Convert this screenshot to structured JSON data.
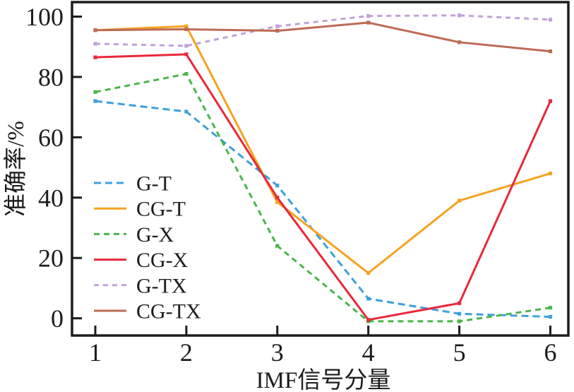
{
  "figure": {
    "background": "#ffffff",
    "axis_color": "#1c1c1c"
  },
  "chart_data": {
    "type": "line",
    "title": "",
    "xlabel": "IMF信号分量",
    "ylabel": "准确率/%",
    "x": [
      1,
      2,
      3,
      4,
      5,
      6
    ],
    "xticks": [
      "1",
      "2",
      "3",
      "4",
      "5",
      "6"
    ],
    "yticks": [
      "0",
      "20",
      "40",
      "60",
      "80",
      "100"
    ],
    "ytick_values": [
      0,
      20,
      40,
      60,
      80,
      100
    ],
    "xtick_values": [
      1,
      2,
      3,
      4,
      5,
      6
    ],
    "xlim": [
      0.744,
      6.198
    ],
    "ylim": [
      -5.7,
      104.8
    ],
    "grid": false,
    "legend_position": "inside-lower-left",
    "series": [
      {
        "name": "G-T",
        "color": "#3da0dc",
        "style": "dashed",
        "dash": "10 6",
        "values": [
          72,
          68.5,
          44,
          6.5,
          1.5,
          0.5
        ]
      },
      {
        "name": "CG-T",
        "color": "#f7a21f",
        "style": "solid",
        "dash": "",
        "values": [
          95.5,
          96.8,
          38.5,
          15,
          39,
          48
        ]
      },
      {
        "name": "G-X",
        "color": "#4ab54a",
        "style": "dashed",
        "dash": "8 6",
        "values": [
          75,
          81,
          24,
          -1,
          -1,
          3.5
        ]
      },
      {
        "name": "CG-X",
        "color": "#e8283a",
        "style": "solid",
        "dash": "",
        "values": [
          86.5,
          87.5,
          40,
          -0.5,
          5,
          72
        ]
      },
      {
        "name": "G-TX",
        "color": "#c2a1d9",
        "style": "dashed",
        "dash": "7 6",
        "values": [
          91,
          90.3,
          96.8,
          100.2,
          100.4,
          99
        ]
      },
      {
        "name": "CG-TX",
        "color": "#bd6b55",
        "style": "solid",
        "dash": "",
        "values": [
          95.5,
          95.8,
          95.3,
          98,
          91.5,
          88.5
        ]
      }
    ]
  }
}
